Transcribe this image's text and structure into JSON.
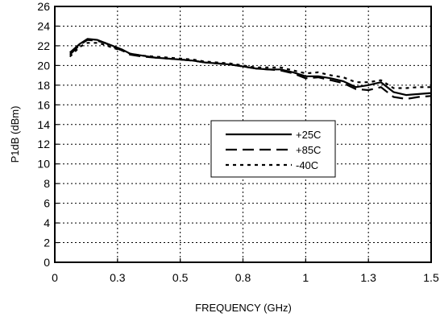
{
  "chart_data": {
    "type": "line",
    "xlabel": "FREQUENCY (GHz)",
    "ylabel": "P1dB (dBm)",
    "xlim": [
      0,
      1.5
    ],
    "ylim": [
      0,
      26
    ],
    "grid": true,
    "grid_style": "dotted",
    "legend_position": "center-right",
    "x_ticks": [
      0,
      0.25,
      0.5,
      0.75,
      1.0,
      1.25,
      1.5
    ],
    "x_tick_labels": [
      "0",
      "0.3",
      "0.5",
      "0.8",
      "1",
      "1.3",
      "1.5"
    ],
    "y_ticks": [
      0,
      2,
      4,
      6,
      8,
      10,
      12,
      14,
      16,
      18,
      20,
      22,
      24,
      26
    ],
    "y_tick_labels": [
      "0",
      "2",
      "4",
      "6",
      "8",
      "10",
      "12",
      "14",
      "16",
      "18",
      "20",
      "22",
      "24",
      "26"
    ],
    "series": [
      {
        "name": "+25C",
        "style": "solid",
        "x": [
          0.06,
          0.1,
          0.13,
          0.17,
          0.2,
          0.23,
          0.27,
          0.3,
          0.35,
          0.4,
          0.45,
          0.5,
          0.55,
          0.6,
          0.65,
          0.7,
          0.75,
          0.8,
          0.85,
          0.9,
          0.95,
          1.0,
          1.05,
          1.1,
          1.15,
          1.2,
          1.25,
          1.3,
          1.35,
          1.4,
          1.45,
          1.5
        ],
        "y": [
          21.3,
          22.2,
          22.7,
          22.6,
          22.3,
          22.0,
          21.6,
          21.2,
          21.0,
          20.8,
          20.7,
          20.6,
          20.5,
          20.3,
          20.2,
          20.1,
          19.9,
          19.7,
          19.6,
          19.6,
          19.3,
          18.9,
          18.9,
          18.7,
          18.4,
          17.8,
          18.0,
          18.3,
          17.3,
          17.0,
          17.1,
          17.2
        ]
      },
      {
        "name": "+85C",
        "style": "dashed",
        "x": [
          0.06,
          0.1,
          0.13,
          0.17,
          0.2,
          0.23,
          0.27,
          0.3,
          0.35,
          0.4,
          0.45,
          0.5,
          0.55,
          0.6,
          0.65,
          0.7,
          0.75,
          0.8,
          0.85,
          0.9,
          0.95,
          1.0,
          1.05,
          1.1,
          1.15,
          1.2,
          1.25,
          1.3,
          1.35,
          1.4,
          1.45,
          1.5
        ],
        "y": [
          21.1,
          22.1,
          22.6,
          22.5,
          22.3,
          21.9,
          21.5,
          21.1,
          20.9,
          20.8,
          20.7,
          20.6,
          20.5,
          20.3,
          20.2,
          20.1,
          19.9,
          19.7,
          19.6,
          19.5,
          19.2,
          18.7,
          18.8,
          18.5,
          18.2,
          17.6,
          17.5,
          17.8,
          16.8,
          16.6,
          16.8,
          16.9
        ]
      },
      {
        "name": "-40C",
        "style": "dotted",
        "x": [
          0.06,
          0.1,
          0.13,
          0.17,
          0.2,
          0.23,
          0.27,
          0.3,
          0.35,
          0.4,
          0.45,
          0.5,
          0.55,
          0.6,
          0.65,
          0.7,
          0.75,
          0.8,
          0.85,
          0.9,
          0.95,
          1.0,
          1.05,
          1.1,
          1.15,
          1.2,
          1.25,
          1.3,
          1.35,
          1.4,
          1.45,
          1.5
        ],
        "y": [
          20.9,
          21.9,
          22.3,
          22.3,
          22.1,
          21.8,
          21.5,
          21.2,
          21.0,
          20.9,
          20.8,
          20.7,
          20.6,
          20.4,
          20.3,
          20.2,
          20.0,
          19.8,
          19.8,
          19.8,
          19.5,
          19.2,
          19.3,
          19.0,
          18.8,
          18.3,
          18.3,
          18.5,
          17.7,
          17.7,
          17.8,
          17.8
        ]
      }
    ]
  }
}
